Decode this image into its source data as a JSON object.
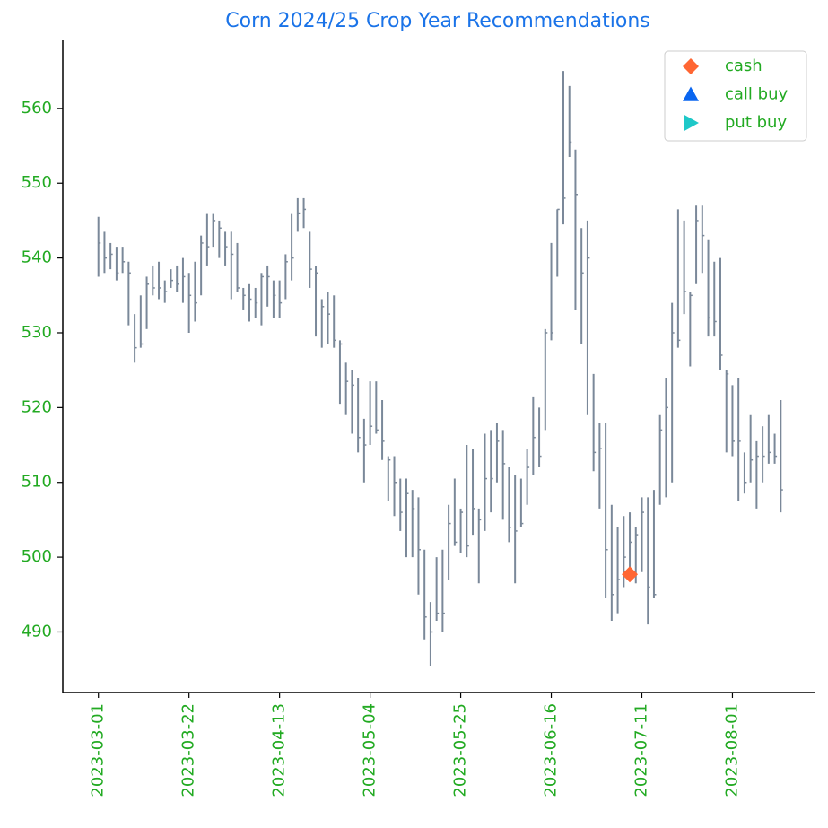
{
  "chart_data": {
    "type": "ohlc",
    "title": "Corn 2024/25 Crop Year Recommendations",
    "categories": [
      "2023-03-01",
      null,
      null,
      null,
      null,
      null,
      null,
      null,
      null,
      null,
      null,
      null,
      null,
      null,
      null,
      "2023-03-22",
      null,
      null,
      null,
      null,
      null,
      null,
      null,
      null,
      null,
      null,
      null,
      null,
      null,
      null,
      "2023-04-13",
      null,
      null,
      null,
      null,
      null,
      null,
      null,
      null,
      null,
      null,
      null,
      null,
      null,
      null,
      "2023-05-04",
      null,
      null,
      null,
      null,
      null,
      null,
      null,
      null,
      null,
      null,
      null,
      null,
      null,
      null,
      "2023-05-25",
      null,
      null,
      null,
      null,
      null,
      null,
      null,
      null,
      null,
      null,
      null,
      null,
      null,
      null,
      "2023-06-16",
      null,
      null,
      null,
      null,
      null,
      null,
      null,
      null,
      null,
      null,
      null,
      null,
      null,
      null,
      "2023-07-11",
      null,
      null,
      null,
      null,
      null,
      null,
      null,
      null,
      null,
      null,
      null,
      null,
      null,
      null,
      "2023-08-01",
      null,
      null,
      null,
      null,
      null,
      null,
      null,
      null
    ],
    "high": [
      545.5,
      543.5,
      542,
      541.5,
      541.5,
      539.5,
      532.5,
      535,
      537.5,
      539,
      539.5,
      537,
      538.5,
      539,
      540,
      538,
      539.5,
      543,
      546,
      546,
      545,
      543.5,
      543.5,
      542,
      536,
      536.5,
      536,
      538,
      539,
      537,
      537,
      540.5,
      546,
      548,
      548,
      543.5,
      539,
      534.5,
      535.5,
      535,
      529,
      526,
      525,
      524,
      518.5,
      523.5,
      523.5,
      521,
      513.5,
      513.5,
      510.5,
      510.5,
      509,
      508,
      501,
      494,
      500,
      501,
      507,
      510.5,
      506.5,
      515,
      514.5,
      506.5,
      516.5,
      517,
      518,
      517,
      512,
      511,
      510.5,
      514.5,
      521.5,
      520,
      530.5,
      542,
      546.5,
      565,
      563,
      554.5,
      544,
      545,
      524.5,
      518,
      518,
      507,
      504,
      505.5,
      506,
      504,
      508,
      508,
      509,
      519,
      524,
      534,
      546.5,
      545,
      535.5,
      547,
      547,
      542.5,
      539.5,
      540,
      525,
      523,
      524,
      514,
      519,
      515.5,
      517.5,
      519,
      516.5,
      521
    ],
    "low": [
      537.5,
      538,
      538.5,
      537,
      538,
      531,
      526,
      528,
      530.5,
      535,
      534.5,
      534,
      536,
      535.5,
      534,
      530,
      531.5,
      535,
      539,
      541.5,
      540,
      539,
      534.5,
      535.5,
      533,
      531.5,
      532,
      531,
      533.5,
      532,
      532,
      534.5,
      537,
      543.5,
      544,
      536,
      529.5,
      528,
      528.5,
      528,
      520.5,
      519,
      516.5,
      514,
      510,
      515,
      516.5,
      513,
      507.5,
      505.5,
      503.5,
      500,
      500,
      495,
      489,
      485.5,
      491.5,
      490,
      497,
      501.5,
      500.5,
      500,
      503,
      496.5,
      503.5,
      506,
      510,
      505,
      502,
      496.5,
      504,
      507,
      511,
      512,
      517,
      529,
      537.5,
      544.5,
      553.5,
      533,
      528.5,
      519,
      511.5,
      506.5,
      494.5,
      491.5,
      492.5,
      496,
      498,
      496.5,
      498,
      491,
      494.5,
      507,
      508,
      510,
      528,
      532.5,
      525.5,
      536.5,
      538,
      529.5,
      529.5,
      525,
      514,
      513.5,
      507.5,
      508.5,
      510,
      506.5,
      510,
      512.5,
      512.5,
      506
    ],
    "close": [
      542,
      540,
      540.5,
      538,
      539.5,
      538,
      528,
      528.5,
      536.5,
      536,
      536,
      535.5,
      537,
      536.5,
      537.5,
      535,
      534,
      542,
      541.5,
      545,
      544,
      541.5,
      540.5,
      536,
      535,
      534.5,
      534,
      537.5,
      537.5,
      535,
      534,
      539.5,
      540,
      546,
      546.5,
      538.5,
      538,
      533.5,
      532.5,
      529,
      528.5,
      523.5,
      523,
      516,
      515,
      517.5,
      517,
      515.5,
      513,
      510,
      506,
      508.5,
      506.5,
      501,
      492,
      490,
      492.5,
      492.5,
      504.5,
      502,
      506,
      501.5,
      506.5,
      505,
      510.5,
      510.5,
      515.5,
      512.5,
      504,
      503.5,
      504.5,
      512,
      516,
      513.5,
      530,
      530,
      546.5,
      548,
      555.5,
      548.5,
      538,
      540,
      514,
      514.5,
      501,
      495,
      497,
      500,
      502,
      503,
      506,
      496,
      495,
      517,
      520,
      530,
      529,
      535.5,
      535,
      545,
      543,
      532,
      531.5,
      527,
      524.5,
      515.5,
      515.5,
      510,
      513,
      513.5,
      513.5,
      514,
      513.5,
      509
    ],
    "color": "#7a8899",
    "xlim": [
      -5.9,
      118.6
    ],
    "ylim": [
      481.9,
      569.1
    ],
    "yticks": [
      490,
      500,
      510,
      520,
      530,
      540,
      550,
      560
    ],
    "markers": [
      {
        "name": "cash",
        "color": "#ff6633",
        "shape": "diamond",
        "x": [
          88
        ],
        "values": [
          497.7
        ]
      },
      {
        "name": "call buy",
        "color": "#0a66f0",
        "shape": "triangle",
        "x": [],
        "values": []
      },
      {
        "name": "put buy",
        "color": "#1ec8c8",
        "shape": "right-triangle",
        "x": [],
        "values": []
      }
    ],
    "legend": "upper right"
  }
}
